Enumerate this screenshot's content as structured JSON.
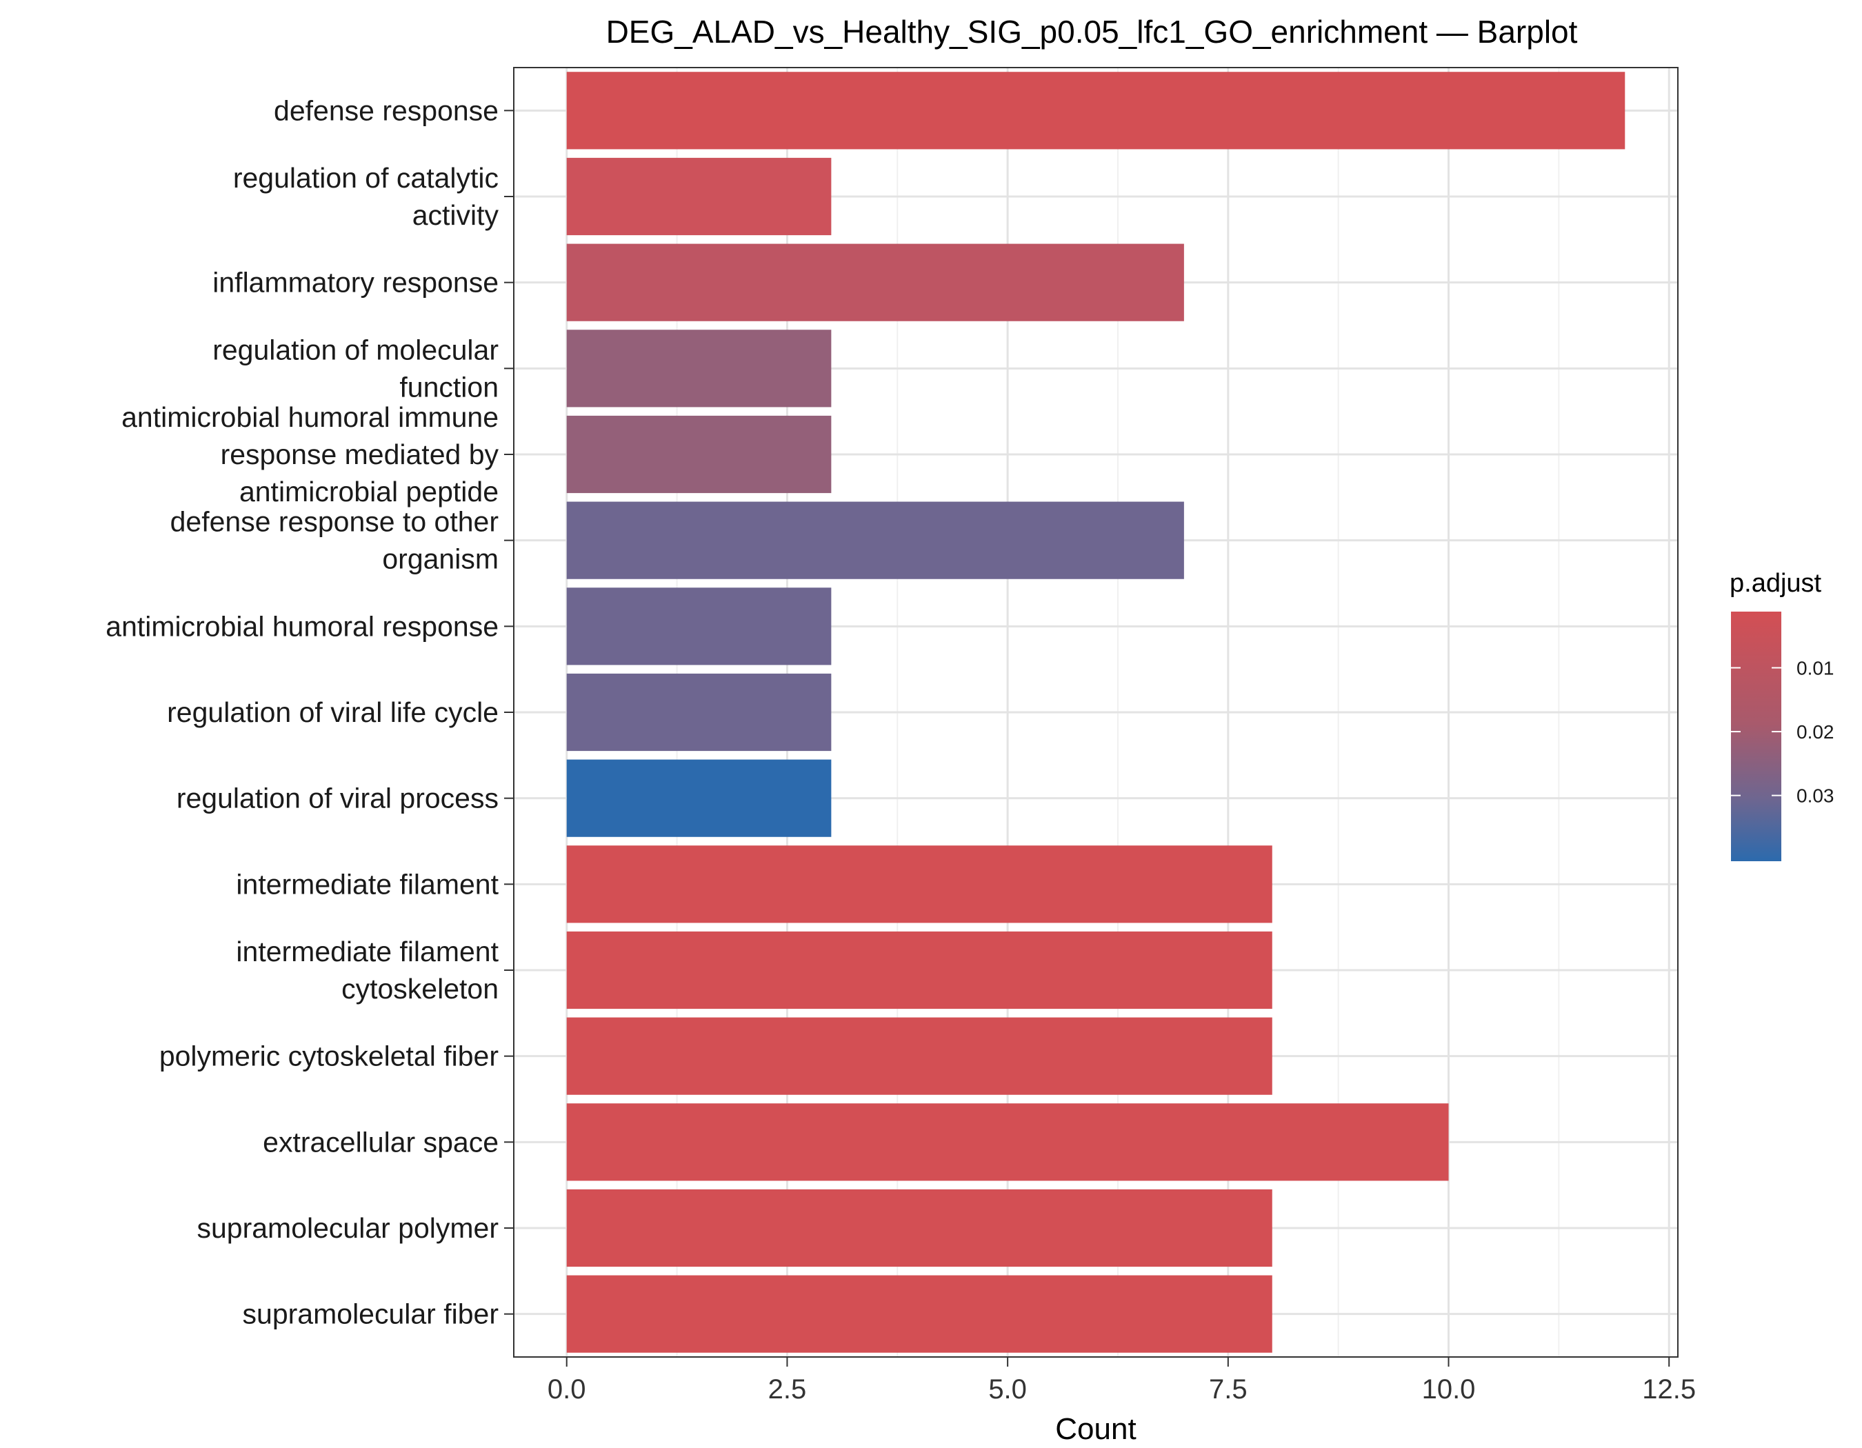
{
  "chart_data": {
    "type": "bar",
    "orientation": "horizontal",
    "title": "DEG_ALAD_vs_Healthy_SIG_p0.05_lfc1_GO_enrichment — Barplot",
    "xlabel": "Count",
    "ylabel": "",
    "xlim": [
      -0.6,
      12.6
    ],
    "x_ticks": [
      0,
      2.5,
      5,
      7.5,
      10,
      12.5
    ],
    "x_tick_labels": [
      "0.0",
      "2.5",
      "5.0",
      "7.5",
      "10.0",
      "12.5"
    ],
    "grid": true,
    "categories": [
      [
        "defense response"
      ],
      [
        "regulation of catalytic",
        "activity"
      ],
      [
        "inflammatory response"
      ],
      [
        "regulation of molecular",
        "function"
      ],
      [
        "antimicrobial humoral immune",
        "response mediated by",
        "antimicrobial peptide"
      ],
      [
        "defense response to other",
        "organism"
      ],
      [
        "antimicrobial humoral response"
      ],
      [
        "regulation of viral life cycle"
      ],
      [
        "regulation of viral process"
      ],
      [
        "intermediate filament"
      ],
      [
        "intermediate filament",
        "cytoskeleton"
      ],
      [
        "polymeric cytoskeletal fiber"
      ],
      [
        "extracellular space"
      ],
      [
        "supramolecular polymer"
      ],
      [
        "supramolecular fiber"
      ]
    ],
    "values": [
      12,
      3,
      7,
      3,
      3,
      7,
      3,
      3,
      3,
      8,
      8,
      8,
      10,
      8,
      8
    ],
    "p_adjust": [
      0.0015,
      0.005,
      0.011,
      0.021,
      0.021,
      0.029,
      0.029,
      0.029,
      0.038,
      0.0015,
      0.0015,
      0.0015,
      0.0015,
      0.0015,
      0.0015
    ],
    "bar_colors": [
      "#d34f54",
      "#cd525b",
      "#be5563",
      "#946079",
      "#946079",
      "#6e6690",
      "#6e6690",
      "#6e6690",
      "#2c6aad",
      "#d34f54",
      "#d34f54",
      "#d34f54",
      "#d34f54",
      "#d34f54",
      "#d34f54"
    ],
    "legend": {
      "title": "p.adjust",
      "position": "right",
      "low_color": "#d34f54",
      "high_color": "#2c6aad",
      "range": [
        0.0012,
        0.0403
      ],
      "ticks": [
        0.01,
        0.02,
        0.03
      ],
      "tick_labels": [
        "0.01",
        "0.02",
        "0.03"
      ]
    }
  }
}
